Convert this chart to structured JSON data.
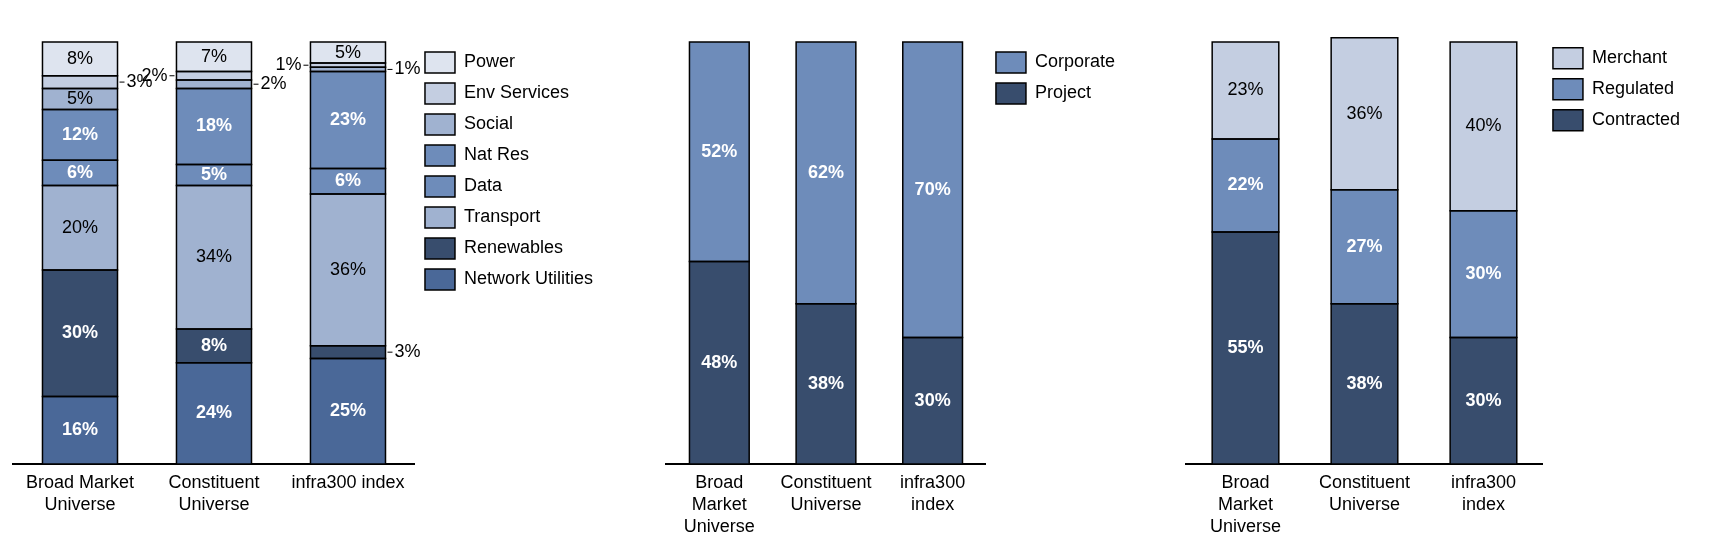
{
  "chart_data": [
    {
      "type": "bar",
      "stacked": true,
      "legend": "top right",
      "tick_labels": "x",
      "categories": [
        "Broad Market Universe",
        "Constituent Universe",
        "infra300 index"
      ],
      "series": [
        {
          "name": "Network Utilities",
          "color": "#4a6898",
          "values": [
            16,
            24,
            25
          ],
          "value_labels": [
            "16%",
            "24%",
            "25%"
          ]
        },
        {
          "name": "Renewables",
          "color": "#384d6d",
          "values": [
            30,
            8,
            3
          ],
          "value_labels": [
            "30%",
            "8%",
            "3%"
          ]
        },
        {
          "name": "Transport",
          "color": "#a0b2d0",
          "values": [
            20,
            34,
            36
          ],
          "value_labels": [
            "20%",
            "34%",
            "36%"
          ]
        },
        {
          "name": "Data",
          "color": "#6e8cba",
          "values": [
            6,
            5,
            6
          ],
          "value_labels": [
            "6%",
            "5%",
            "6%"
          ]
        },
        {
          "name": "Nat Res",
          "color": "#6e8cba",
          "values": [
            12,
            18,
            23
          ],
          "value_labels": [
            "12%",
            "18%",
            "23%"
          ]
        },
        {
          "name": "Social",
          "color": "#a0b2d0",
          "values": [
            5,
            2,
            1
          ],
          "value_labels": [
            "5%",
            "2%",
            "1%"
          ]
        },
        {
          "name": "Env Services",
          "color": "#c4cee1",
          "values": [
            3,
            2,
            1
          ],
          "value_labels": [
            "3%",
            "2%",
            "1%"
          ]
        },
        {
          "name": "Power",
          "color": "#dee4ef",
          "values": [
            8,
            7,
            5
          ],
          "value_labels": [
            "8%",
            "7%",
            "5%"
          ]
        }
      ]
    },
    {
      "type": "bar",
      "stacked": true,
      "legend": "top right",
      "tick_labels": "x",
      "categories": [
        "Broad Market Universe",
        "Constituent Universe",
        "infra300 index"
      ],
      "series": [
        {
          "name": "Project",
          "color": "#384d6d",
          "values": [
            48,
            38,
            30
          ],
          "value_labels": [
            "48%",
            "38%",
            "30%"
          ]
        },
        {
          "name": "Corporate",
          "color": "#6e8cba",
          "values": [
            52,
            62,
            70
          ],
          "value_labels": [
            "52%",
            "62%",
            "70%"
          ]
        }
      ]
    },
    {
      "type": "bar",
      "stacked": true,
      "legend": "top right",
      "tick_labels": "x",
      "categories": [
        "Broad Market Universe",
        "Constituent Universe",
        "infra300 index"
      ],
      "series": [
        {
          "name": "Contracted",
          "color": "#384d6d",
          "values": [
            55,
            38,
            30
          ],
          "value_labels": [
            "55%",
            "38%",
            "30%"
          ]
        },
        {
          "name": "Regulated",
          "color": "#6e8cba",
          "values": [
            22,
            27,
            30
          ],
          "value_labels": [
            "22%",
            "27%",
            "30%"
          ]
        },
        {
          "name": "Merchant",
          "color": "#c4cee1",
          "values": [
            23,
            36,
            40
          ],
          "value_labels": [
            "23%",
            "36%",
            "40%"
          ]
        }
      ]
    }
  ]
}
